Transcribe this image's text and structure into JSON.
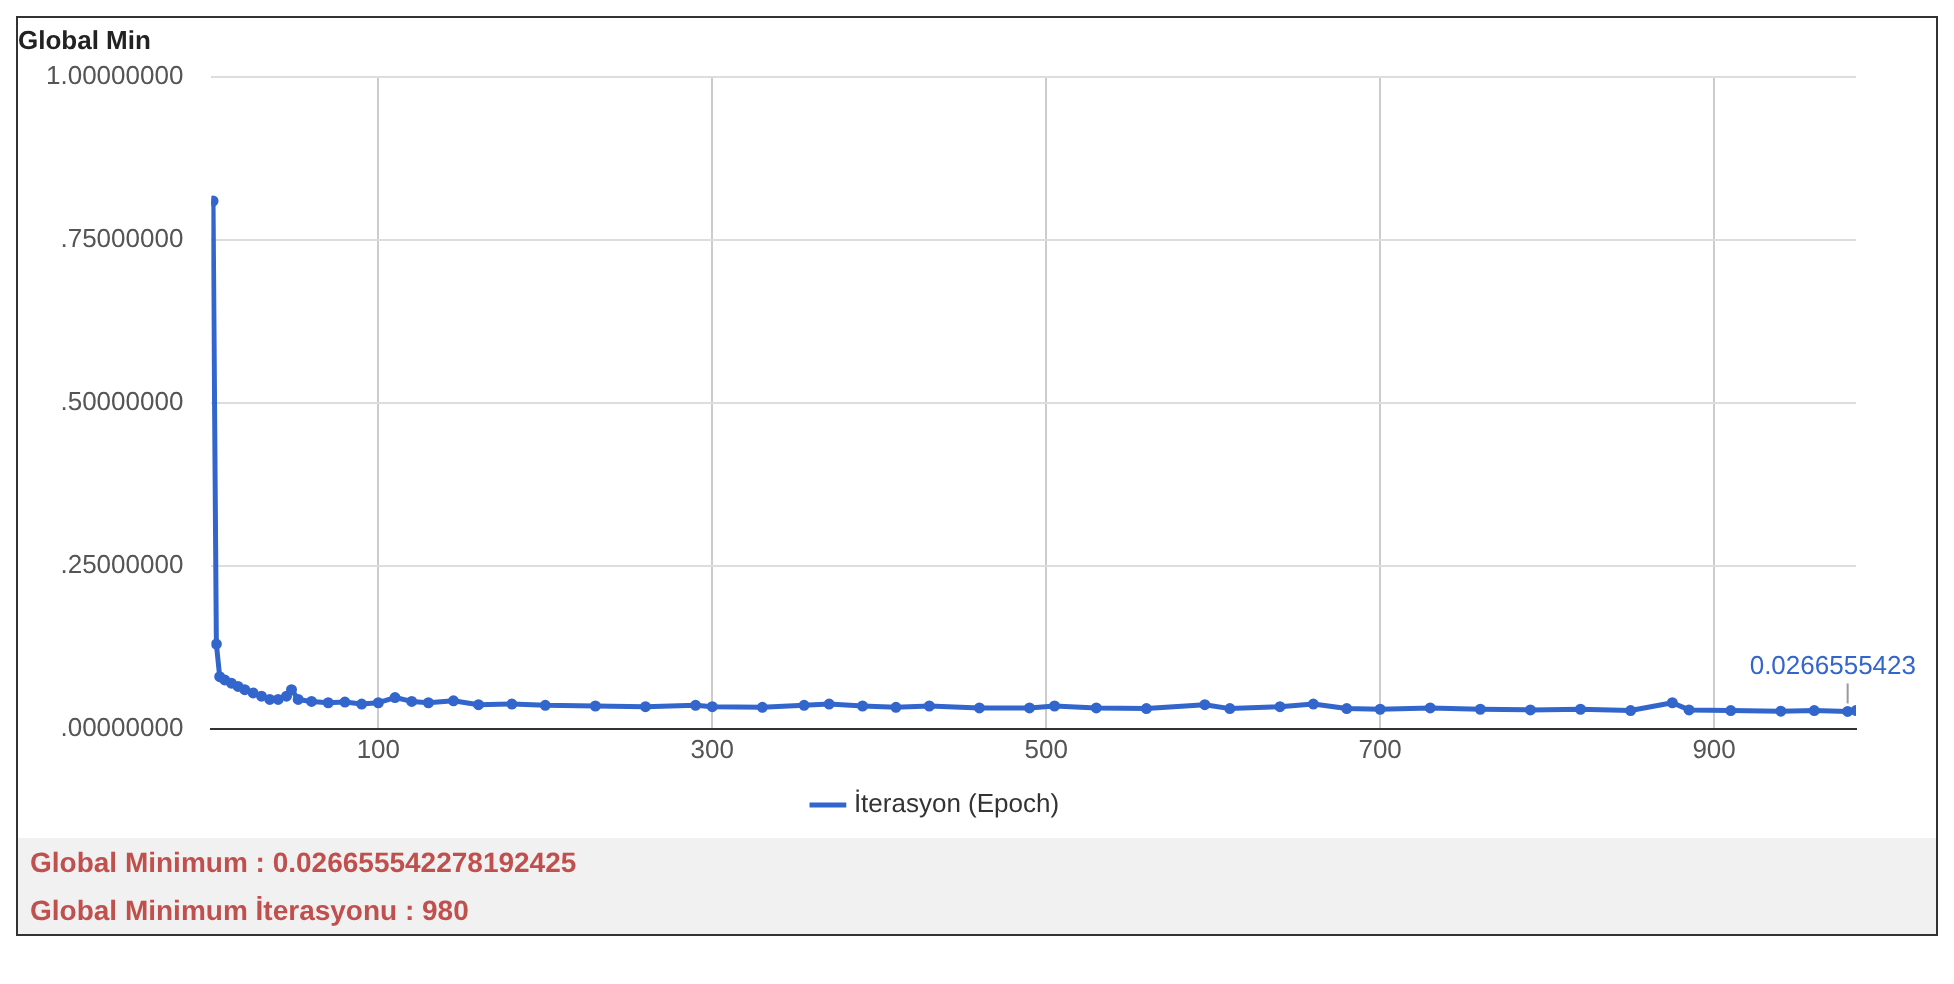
{
  "chart_data": {
    "type": "line",
    "title": "Global Min",
    "x": [
      1,
      3,
      5,
      8,
      12,
      16,
      20,
      25,
      30,
      35,
      40,
      45,
      48,
      52,
      60,
      70,
      80,
      90,
      100,
      110,
      120,
      130,
      145,
      160,
      180,
      200,
      230,
      260,
      290,
      300,
      330,
      355,
      370,
      390,
      410,
      430,
      460,
      490,
      505,
      530,
      560,
      595,
      610,
      640,
      660,
      680,
      700,
      730,
      760,
      790,
      820,
      850,
      875,
      885,
      910,
      940,
      960,
      980,
      985
    ],
    "series": [
      {
        "name": "İterasyon (Epoch)",
        "color": "#3366cc",
        "values": [
          0.81,
          0.13,
          0.08,
          0.075,
          0.07,
          0.065,
          0.06,
          0.055,
          0.05,
          0.045,
          0.045,
          0.05,
          0.06,
          0.045,
          0.042,
          0.04,
          0.041,
          0.038,
          0.04,
          0.048,
          0.042,
          0.04,
          0.043,
          0.037,
          0.038,
          0.036,
          0.035,
          0.034,
          0.036,
          0.034,
          0.033,
          0.036,
          0.038,
          0.035,
          0.033,
          0.035,
          0.032,
          0.032,
          0.035,
          0.032,
          0.031,
          0.037,
          0.031,
          0.034,
          0.038,
          0.031,
          0.03,
          0.032,
          0.03,
          0.029,
          0.03,
          0.028,
          0.04,
          0.029,
          0.028,
          0.027,
          0.028,
          0.0266555423,
          0.028
        ]
      }
    ],
    "xlim": [
      0,
      985
    ],
    "xticks": [
      100,
      300,
      500,
      700,
      900
    ],
    "ylim": [
      0,
      1
    ],
    "yticks": [
      {
        "value": 0,
        "label": ".00000000"
      },
      {
        "value": 0.25,
        "label": ".25000000"
      },
      {
        "value": 0.5,
        "label": ".50000000"
      },
      {
        "value": 0.75,
        "label": ".75000000"
      },
      {
        "value": 1,
        "label": "1.00000000"
      }
    ],
    "grid": true,
    "legend": "bottom",
    "marker": "circle",
    "line_style": "solid",
    "annotations": [
      {
        "text": "0.0266555423",
        "x": 980,
        "y": 0.0266555423
      },
      "Global Minimum : 0.026655542278192425",
      "Global Minimum İterasyonu : 980"
    ]
  }
}
